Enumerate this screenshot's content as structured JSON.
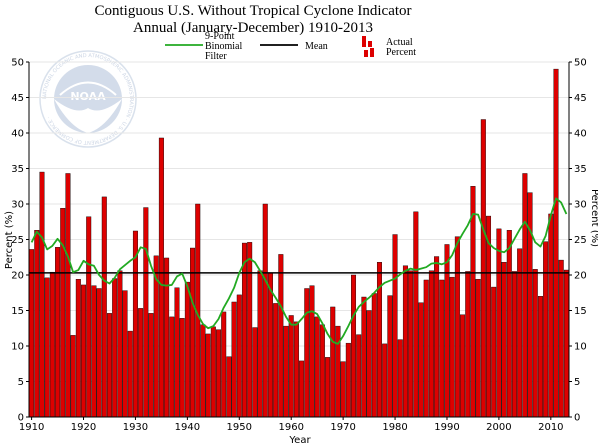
{
  "chart_data": {
    "type": "bar",
    "title": "Contiguous U.S. Without Tropical Cyclone Indicator",
    "subtitle": "Annual (January-December) 1910-2013",
    "xlabel": "Year",
    "ylabel": "Percent (%)",
    "ylabel_right": "Percent (%)",
    "xlim": [
      1910,
      2013
    ],
    "ylim": [
      0,
      50
    ],
    "y_ticks": [
      0,
      5,
      10,
      15,
      20,
      25,
      30,
      35,
      40,
      45,
      50
    ],
    "x_ticks": [
      1910,
      1920,
      1930,
      1940,
      1950,
      1960,
      1970,
      1980,
      1990,
      2000,
      2010
    ],
    "grid": true,
    "legend_position": "top",
    "mean": 20.3,
    "x": [
      1910,
      1911,
      1912,
      1913,
      1914,
      1915,
      1916,
      1917,
      1918,
      1919,
      1920,
      1921,
      1922,
      1923,
      1924,
      1925,
      1926,
      1927,
      1928,
      1929,
      1930,
      1931,
      1932,
      1933,
      1934,
      1935,
      1936,
      1937,
      1938,
      1939,
      1940,
      1941,
      1942,
      1943,
      1944,
      1945,
      1946,
      1947,
      1948,
      1949,
      1950,
      1951,
      1952,
      1953,
      1954,
      1955,
      1956,
      1957,
      1958,
      1959,
      1960,
      1961,
      1962,
      1963,
      1964,
      1965,
      1966,
      1967,
      1968,
      1969,
      1970,
      1971,
      1972,
      1973,
      1974,
      1975,
      1976,
      1977,
      1978,
      1979,
      1980,
      1981,
      1982,
      1983,
      1984,
      1985,
      1986,
      1987,
      1988,
      1989,
      1990,
      1991,
      1992,
      1993,
      1994,
      1995,
      1996,
      1997,
      1998,
      1999,
      2000,
      2001,
      2002,
      2003,
      2004,
      2005,
      2006,
      2007,
      2008,
      2009,
      2010,
      2011,
      2012,
      2013
    ],
    "series": [
      {
        "name": "Actual Percent",
        "color": "#dd0000",
        "values": [
          23.6,
          26.3,
          34.5,
          19.6,
          20.4,
          23.9,
          29.4,
          34.3,
          11.5,
          19.4,
          18.6,
          28.2,
          18.5,
          18.1,
          31.0,
          14.6,
          19.5,
          20.6,
          17.8,
          12.1,
          26.2,
          15.3,
          29.5,
          14.6,
          22.7,
          39.3,
          22.4,
          14.1,
          18.2,
          13.9,
          19.0,
          23.8,
          30.0,
          13.0,
          11.7,
          12.7,
          12.3,
          14.8,
          8.5,
          16.2,
          17.2,
          24.5,
          24.6,
          12.6,
          20.6,
          30.0,
          20.3,
          16.0,
          22.9,
          12.8,
          14.3,
          13.4,
          7.9,
          18.1,
          18.5,
          14.1,
          13.0,
          8.4,
          15.5,
          12.8,
          7.8,
          10.4,
          20.0,
          11.6,
          16.9,
          15.0,
          17.4,
          21.8,
          10.3,
          17.1,
          25.7,
          10.9,
          21.3,
          20.6,
          28.9,
          16.1,
          19.3,
          20.6,
          22.6,
          19.3,
          24.3,
          19.7,
          25.4,
          14.4,
          20.5,
          32.5,
          19.4,
          41.9,
          28.3,
          18.3,
          26.5,
          21.8,
          26.3,
          20.5,
          23.7,
          34.3,
          31.6,
          20.8,
          17.0,
          24.7,
          28.6,
          49.0,
          22.1,
          20.7
        ]
      },
      {
        "name": "9-Point Binomial Filter",
        "color": "#22aa22",
        "values": [
          24.6,
          26.1,
          25.3,
          23.6,
          24.1,
          25.1,
          24.2,
          22.6,
          20.4,
          20.7,
          22.0,
          21.5,
          21.3,
          20.0,
          19.2,
          18.8,
          19.6,
          20.8,
          21.4,
          22.0,
          22.5,
          23.9,
          23.7,
          21.3,
          19.4,
          18.6,
          18.5,
          18.6,
          19.8,
          20.2,
          18.4,
          16.1,
          14.4,
          13.1,
          12.5,
          12.8,
          13.8,
          15.4,
          16.7,
          18.2,
          20.3,
          21.8,
          22.3,
          21.8,
          20.6,
          19.3,
          17.9,
          16.8,
          15.6,
          14.1,
          13.0,
          13.0,
          13.8,
          14.7,
          14.9,
          14.5,
          13.2,
          11.7,
          10.6,
          10.3,
          11.4,
          12.8,
          14.3,
          15.5,
          16.2,
          16.8,
          17.5,
          18.3,
          18.9,
          19.2,
          19.5,
          20.1,
          20.6,
          20.9,
          20.7,
          20.9,
          21.1,
          21.6,
          21.7,
          21.5,
          21.8,
          22.8,
          24.5,
          25.8,
          27.0,
          28.6,
          28.5,
          26.4,
          24.5,
          23.8,
          23.4,
          23.2,
          23.8,
          25.1,
          26.4,
          27.5,
          26.3,
          24.6,
          24.0,
          25.5,
          28.4,
          30.8,
          30.2,
          28.6
        ]
      }
    ]
  },
  "legend": {
    "filter_label_line1": "9-Point",
    "filter_label_line2": "Binomial",
    "filter_label_line3": "Filter",
    "mean_label": "Mean",
    "actual_label_line1": "Actual",
    "actual_label_line2": "Percent"
  },
  "logo": {
    "text": "NOAA",
    "ring_text": "NATIONAL OCEANIC AND ATMOSPHERIC ADMINISTRATION · U.S. DEPARTMENT OF COMMERCE ·"
  },
  "colors": {
    "bar": "#dd0000",
    "bar_stroke": "#000000",
    "filter": "#22aa22",
    "mean": "#000000",
    "grid": "#e6e6e6"
  }
}
